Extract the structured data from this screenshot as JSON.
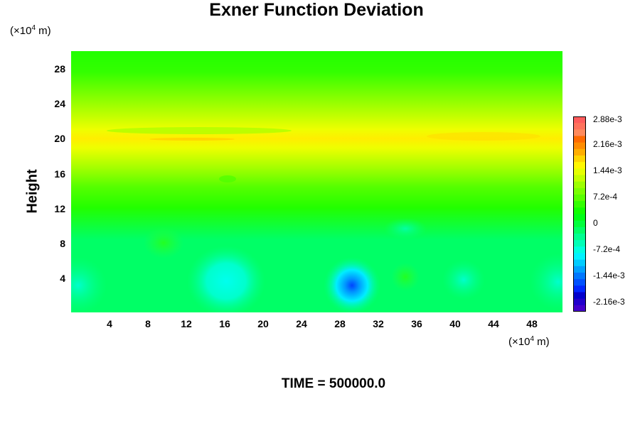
{
  "chart_data": {
    "type": "heatmap",
    "title": "Exner Function Deviation",
    "ylabel": "Height",
    "x_unit": "(×10⁴ m)",
    "y_unit": "(×10⁴ m)",
    "x_ticks": [
      "4",
      "8",
      "12",
      "16",
      "20",
      "24",
      "28",
      "32",
      "36",
      "40",
      "44",
      "48"
    ],
    "y_ticks": [
      "4",
      "8",
      "12",
      "16",
      "20",
      "24",
      "28"
    ],
    "xlim": [
      0,
      51
    ],
    "ylim": [
      0,
      30
    ],
    "colorbar": {
      "labels": [
        "2.88e-3",
        "2.16e-3",
        "1.44e-3",
        "7.2e-4",
        "0",
        "-7.2e-4",
        "-1.44e-3",
        "-2.16e-3"
      ],
      "range": [
        -0.00252,
        0.00288
      ]
    },
    "footer": "TIME = 500000.0"
  }
}
